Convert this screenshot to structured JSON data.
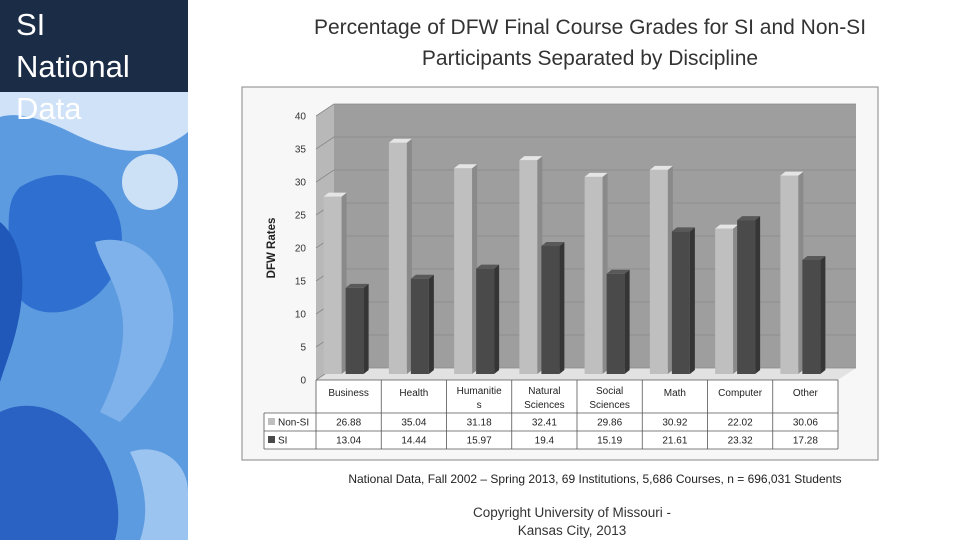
{
  "slide": {
    "sidebar_title": "SI\nNational\nData"
  },
  "colors": {
    "title_box": "#1b2c46",
    "non_si_bar": "#bfbfbf",
    "si_bar": "#4a4a4a",
    "sidebar_art": "#2f6fd0"
  },
  "chart_data": {
    "type": "bar",
    "title_line1": "Percentage of DFW Final Course Grades for SI and Non-SI",
    "title_line2": "Participants Separated by Discipline",
    "ylabel": "DFW Rates",
    "ylim": [
      0,
      40
    ],
    "yticks": [
      "0",
      "5",
      "10",
      "15",
      "20",
      "25",
      "30",
      "35",
      "40"
    ],
    "categories": [
      "Business",
      "Health",
      "Humanities",
      "Natural Sciences",
      "Social Sciences",
      "Math",
      "Computer",
      "Other"
    ],
    "category_lines": [
      [
        "Business"
      ],
      [
        "Health"
      ],
      [
        "Humanitie",
        "s"
      ],
      [
        "Natural",
        "Sciences"
      ],
      [
        "Social",
        "Sciences"
      ],
      [
        "Math"
      ],
      [
        "Computer"
      ],
      [
        "Other"
      ]
    ],
    "series": [
      {
        "name": "Non-SI",
        "values": [
          26.88,
          35.04,
          31.18,
          32.41,
          29.86,
          30.92,
          22.02,
          30.06
        ],
        "labels": [
          "26.88",
          "35.04",
          "31.18",
          "32.41",
          "29.86",
          "30.92",
          "22.02",
          "30.06"
        ]
      },
      {
        "name": "SI",
        "values": [
          13.04,
          14.44,
          15.97,
          19.4,
          15.19,
          21.61,
          23.32,
          17.28
        ],
        "labels": [
          "13.04",
          "14.44",
          "15.97",
          "19.4",
          "15.19",
          "21.61",
          "23.32",
          "17.28"
        ]
      }
    ],
    "grid": true,
    "legend": "table-left",
    "footnote": "National Data, Fall 2002 – Spring 2013, 69 Institutions, 5,686 Courses, n = 696,031 Students",
    "copyright_line1": "Copyright University of Missouri -",
    "copyright_line2": "Kansas City, 2013"
  }
}
